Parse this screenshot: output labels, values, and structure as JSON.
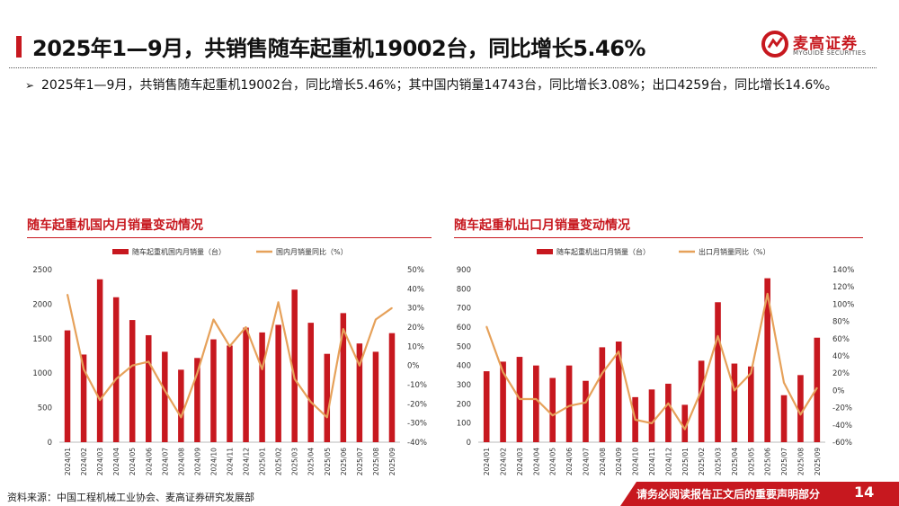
{
  "header": {
    "title": "2025年1—9月，共销售随车起重机19002台，同比增长5.46%",
    "logo_cn": "麦高证券",
    "logo_en": "MYGUIDE SECURITIES",
    "brand_color": "#c7181f"
  },
  "summary": {
    "text": "2025年1—9月，共销售随车起重机19002台，同比增长5.46%；其中国内销量14743台，同比增长3.08%；出口4259台，同比增长14.6%。"
  },
  "chart_data": [
    {
      "type": "bar",
      "panel_title": "随车起重机国内月销量变动情况",
      "categories": [
        "2024/01",
        "2024/02",
        "2024/03",
        "2024/04",
        "2024/05",
        "2024/06",
        "2024/07",
        "2024/08",
        "2024/09",
        "2024/10",
        "2024/11",
        "2024/12",
        "2025/01",
        "2025/02",
        "2025/03",
        "2025/04",
        "2025/05",
        "2025/06",
        "2025/07",
        "2025/08",
        "2025/09"
      ],
      "series": [
        {
          "name": "随车起重机国内月销量（台）",
          "type": "bar",
          "axis": "left",
          "color": "#c7181f",
          "values": [
            1620,
            1270,
            2360,
            2100,
            1770,
            1550,
            1310,
            1050,
            1220,
            1490,
            1400,
            1660,
            1590,
            1700,
            2210,
            1730,
            1280,
            1870,
            1430,
            1310,
            1580
          ]
        },
        {
          "name": "国内月销量同比（%）",
          "type": "line",
          "axis": "right",
          "color": "#e6a15a",
          "values": [
            37,
            -2,
            -18,
            -7,
            0,
            2,
            -13,
            -27,
            -4,
            24,
            10,
            20,
            -2,
            33,
            -7,
            -19,
            -27,
            19,
            0,
            24,
            30
          ]
        }
      ],
      "yleft": {
        "min": 0,
        "max": 2500,
        "ticks": [
          "0",
          "500",
          "1000",
          "1500",
          "2000",
          "2500"
        ]
      },
      "yright": {
        "min": -40,
        "max": 50,
        "ticks": [
          "-40%",
          "-30%",
          "-20%",
          "-10%",
          "0%",
          "10%",
          "20%",
          "30%",
          "40%",
          "50%"
        ]
      }
    },
    {
      "type": "bar",
      "panel_title": "随车起重机出口月销量变动情况",
      "categories": [
        "2024/01",
        "2024/02",
        "2024/03",
        "2024/04",
        "2024/05",
        "2024/06",
        "2024/07",
        "2024/08",
        "2024/09",
        "2024/10",
        "2024/11",
        "2024/12",
        "2025/01",
        "2025/02",
        "2025/03",
        "2025/04",
        "2025/05",
        "2025/06",
        "2025/07",
        "2025/08",
        "2025/09"
      ],
      "series": [
        {
          "name": "随车起重机出口月销量（台）",
          "type": "bar",
          "axis": "left",
          "color": "#c7181f",
          "values": [
            370,
            420,
            445,
            400,
            335,
            400,
            320,
            495,
            525,
            235,
            275,
            305,
            195,
            425,
            730,
            410,
            395,
            855,
            245,
            350,
            545
          ]
        },
        {
          "name": "出口月销量同比（%）",
          "type": "line",
          "axis": "right",
          "color": "#e6a15a",
          "values": [
            74,
            21,
            -10,
            -10,
            -29,
            -18,
            -14,
            20,
            45,
            -34,
            -38,
            -15,
            -45,
            0,
            63,
            0,
            20,
            112,
            9,
            -28,
            3
          ]
        }
      ],
      "yleft": {
        "min": 0,
        "max": 900,
        "ticks": [
          "0",
          "100",
          "200",
          "300",
          "400",
          "500",
          "600",
          "700",
          "800",
          "900"
        ]
      },
      "yright": {
        "min": -60,
        "max": 140,
        "ticks": [
          "-60%",
          "-40%",
          "-20%",
          "0%",
          "20%",
          "40%",
          "60%",
          "80%",
          "100%",
          "120%",
          "140%"
        ]
      }
    }
  ],
  "footer": {
    "source": "资料来源：中国工程机械工业协会、麦高证券研究发展部",
    "disclaimer": "请务必阅读报告正文后的重要声明部分",
    "page_number": "14"
  }
}
